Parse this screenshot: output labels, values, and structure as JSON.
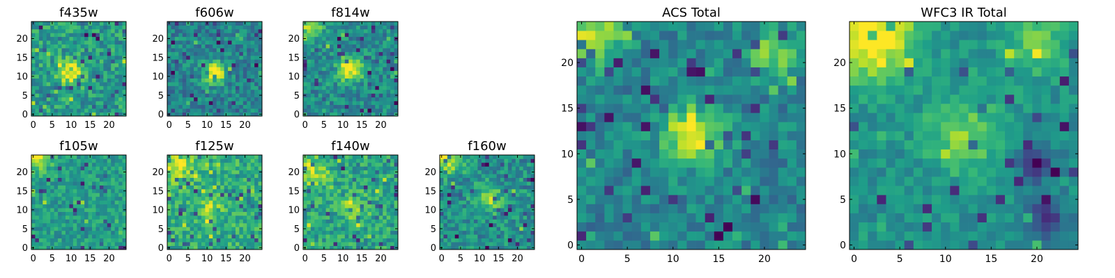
{
  "chart_data": [
    {
      "type": "heatmap",
      "title": "f435w",
      "colormap": "viridis",
      "size": [
        25,
        25
      ],
      "xticks": [
        "0",
        "5",
        "10",
        "15",
        "20"
      ],
      "yticks": [
        "0",
        "5",
        "10",
        "15",
        "20"
      ],
      "seed": 11,
      "features": [
        {
          "cx": 10,
          "cy": 11,
          "sig": 2.5,
          "amp": 0.45
        }
      ],
      "noise": 0.18,
      "base": 0.55
    },
    {
      "type": "heatmap",
      "title": "f606w",
      "colormap": "viridis",
      "size": [
        25,
        25
      ],
      "xticks": [
        "0",
        "5",
        "10",
        "15",
        "20"
      ],
      "yticks": [
        "0",
        "5",
        "10",
        "15",
        "20"
      ],
      "seed": 23,
      "features": [
        {
          "cx": 12,
          "cy": 11,
          "sig": 2.0,
          "amp": 0.6
        }
      ],
      "noise": 0.16,
      "base": 0.45
    },
    {
      "type": "heatmap",
      "title": "f814w",
      "colormap": "viridis",
      "size": [
        25,
        25
      ],
      "xticks": [
        "0",
        "5",
        "10",
        "15",
        "20"
      ],
      "yticks": [
        "0",
        "5",
        "10",
        "15",
        "20"
      ],
      "seed": 37,
      "features": [
        {
          "cx": 12,
          "cy": 12,
          "sig": 2.2,
          "amp": 0.6
        },
        {
          "cx": 1,
          "cy": 24,
          "sig": 2.5,
          "amp": 0.4
        }
      ],
      "noise": 0.16,
      "base": 0.48
    },
    {
      "type": "heatmap",
      "title": "f105w",
      "colormap": "viridis",
      "size": [
        25,
        25
      ],
      "xticks": [
        "0",
        "5",
        "10",
        "15",
        "20"
      ],
      "yticks": [
        "0",
        "5",
        "10",
        "15",
        "20"
      ],
      "seed": 41,
      "features": [
        {
          "cx": 1,
          "cy": 24,
          "sig": 2.5,
          "amp": 0.4
        }
      ],
      "noise": 0.14,
      "base": 0.55
    },
    {
      "type": "heatmap",
      "title": "f125w",
      "colormap": "viridis",
      "size": [
        25,
        25
      ],
      "xticks": [
        "0",
        "5",
        "10",
        "15",
        "20"
      ],
      "yticks": [
        "0",
        "5",
        "10",
        "15",
        "20"
      ],
      "seed": 53,
      "features": [
        {
          "cx": 2,
          "cy": 22,
          "sig": 3.0,
          "amp": 0.35
        },
        {
          "cx": 11,
          "cy": 11,
          "sig": 2.0,
          "amp": 0.25
        }
      ],
      "noise": 0.16,
      "base": 0.62
    },
    {
      "type": "heatmap",
      "title": "f140w",
      "colormap": "viridis",
      "size": [
        25,
        25
      ],
      "xticks": [
        "0",
        "5",
        "10",
        "15",
        "20"
      ],
      "yticks": [
        "0",
        "5",
        "10",
        "15",
        "20"
      ],
      "seed": 67,
      "features": [
        {
          "cx": 13,
          "cy": 11,
          "sig": 2.5,
          "amp": 0.3
        },
        {
          "cx": 2,
          "cy": 20,
          "sig": 3.0,
          "amp": 0.3
        }
      ],
      "noise": 0.17,
      "base": 0.58
    },
    {
      "type": "heatmap",
      "title": "f160w",
      "colormap": "viridis",
      "size": [
        25,
        25
      ],
      "xticks": [
        "0",
        "5",
        "10",
        "15",
        "20"
      ],
      "yticks": [
        "0",
        "5",
        "10",
        "15",
        "20"
      ],
      "seed": 71,
      "features": [
        {
          "cx": 12,
          "cy": 13,
          "sig": 2.5,
          "amp": 0.35
        },
        {
          "cx": 2,
          "cy": 23,
          "sig": 2.5,
          "amp": 0.4
        }
      ],
      "noise": 0.17,
      "base": 0.5
    },
    {
      "type": "heatmap",
      "title": "ACS Total",
      "colormap": "viridis",
      "size": [
        25,
        25
      ],
      "xticks": [
        "0",
        "5",
        "10",
        "15",
        "20"
      ],
      "yticks": [
        "0",
        "5",
        "10",
        "15",
        "20"
      ],
      "seed": 83,
      "features": [
        {
          "cx": 12,
          "cy": 12,
          "sig": 2.2,
          "amp": 0.55
        },
        {
          "cx": 1,
          "cy": 23,
          "sig": 2.2,
          "amp": 0.5
        },
        {
          "cx": 21,
          "cy": 21,
          "sig": 1.8,
          "amp": 0.35
        }
      ],
      "noise": 0.14,
      "base": 0.45
    },
    {
      "type": "heatmap",
      "title": "WFC3 IR Total",
      "colormap": "viridis",
      "size": [
        25,
        25
      ],
      "xticks": [
        "0",
        "5",
        "10",
        "15",
        "20"
      ],
      "yticks": [
        "0",
        "5",
        "10",
        "15",
        "20"
      ],
      "seed": 97,
      "features": [
        {
          "cx": 2,
          "cy": 23,
          "sig": 3.5,
          "amp": 0.55
        },
        {
          "cx": 12,
          "cy": 12,
          "sig": 3.0,
          "amp": 0.3
        },
        {
          "cx": 20,
          "cy": 9,
          "sig": 1.5,
          "amp": -0.35
        },
        {
          "cx": 21,
          "cy": 3,
          "sig": 1.5,
          "amp": -0.3
        },
        {
          "cx": 20,
          "cy": 22,
          "sig": 2.5,
          "amp": 0.25
        }
      ],
      "noise": 0.1,
      "base": 0.5
    }
  ]
}
